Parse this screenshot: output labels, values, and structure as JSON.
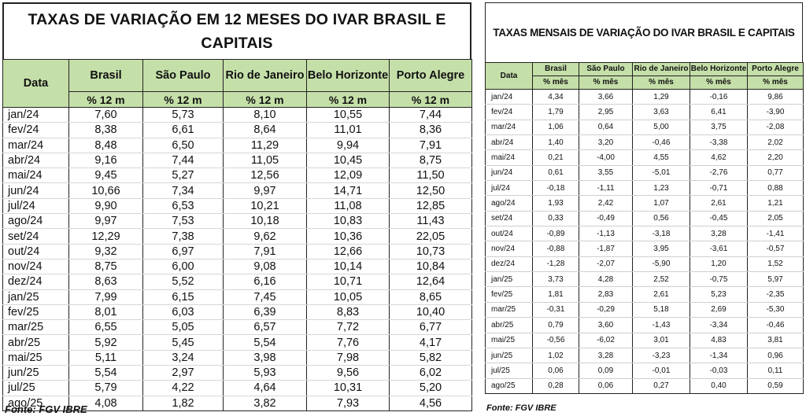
{
  "left": {
    "title": "TAXAS DE VARIAÇÃO EM 12 MESES DO IVAR BRASIL E CAPITAIS",
    "date_header": "Data",
    "columns": [
      "Brasil",
      "São Paulo",
      "Rio de Janeiro",
      "Belo Horizonte",
      "Porto Alegre"
    ],
    "unit": "% 12 m",
    "rows": [
      [
        "jan/24",
        "7,60",
        "5,73",
        "8,10",
        "10,55",
        "7,44"
      ],
      [
        "fev/24",
        "8,38",
        "6,61",
        "8,64",
        "11,01",
        "8,36"
      ],
      [
        "mar/24",
        "8,48",
        "6,50",
        "11,29",
        "9,94",
        "7,91"
      ],
      [
        "abr/24",
        "9,16",
        "7,44",
        "11,05",
        "10,45",
        "8,75"
      ],
      [
        "mai/24",
        "9,45",
        "5,27",
        "12,56",
        "12,09",
        "11,50"
      ],
      [
        "jun/24",
        "10,66",
        "7,34",
        "9,97",
        "14,71",
        "12,50"
      ],
      [
        "jul/24",
        "9,90",
        "6,53",
        "10,21",
        "11,08",
        "12,85"
      ],
      [
        "ago/24",
        "9,97",
        "7,53",
        "10,18",
        "10,83",
        "11,43"
      ],
      [
        "set/24",
        "12,29",
        "7,38",
        "9,62",
        "10,36",
        "22,05"
      ],
      [
        "out/24",
        "9,32",
        "6,97",
        "7,91",
        "12,66",
        "10,73"
      ],
      [
        "nov/24",
        "8,75",
        "6,00",
        "9,08",
        "10,14",
        "10,84"
      ],
      [
        "dez/24",
        "8,63",
        "5,52",
        "6,16",
        "10,71",
        "12,64"
      ],
      [
        "jan/25",
        "7,99",
        "6,15",
        "7,45",
        "10,05",
        "8,65"
      ],
      [
        "fev/25",
        "8,01",
        "6,03",
        "6,39",
        "8,83",
        "10,40"
      ],
      [
        "mar/25",
        "6,55",
        "5,05",
        "6,57",
        "7,72",
        "6,77"
      ],
      [
        "abr/25",
        "5,92",
        "5,45",
        "5,54",
        "7,76",
        "4,17"
      ],
      [
        "mai/25",
        "5,11",
        "3,24",
        "3,98",
        "7,98",
        "5,82"
      ],
      [
        "jun/25",
        "5,54",
        "2,97",
        "5,93",
        "9,56",
        "6,02"
      ],
      [
        "jul/25",
        "5,79",
        "4,22",
        "4,64",
        "10,31",
        "5,20"
      ],
      [
        "ago/25",
        "4,08",
        "1,82",
        "3,82",
        "7,93",
        "4,56"
      ]
    ],
    "source": "Fonte: FGV IBRE"
  },
  "right": {
    "title": "TAXAS MENSAIS DE VARIAÇÃO DO IVAR BRASIL E CAPITAIS",
    "date_header": "Data",
    "columns": [
      "Brasil",
      "São Paulo",
      "Rio de Janeiro",
      "Belo Horizonte",
      "Porto Alegre"
    ],
    "unit": "% mês",
    "rows": [
      [
        "jan/24",
        "4,34",
        "3,66",
        "1,29",
        "-0,16",
        "9,86"
      ],
      [
        "fev/24",
        "1,79",
        "2,95",
        "3,63",
        "6,41",
        "-3,90"
      ],
      [
        "mar/24",
        "1,06",
        "0,64",
        "5,00",
        "3,75",
        "-2,08"
      ],
      [
        "abr/24",
        "1,40",
        "3,20",
        "-0,46",
        "-3,38",
        "2,02"
      ],
      [
        "mai/24",
        "0,21",
        "-4,00",
        "4,55",
        "4,62",
        "2,20"
      ],
      [
        "jun/24",
        "0,61",
        "3,55",
        "-5,01",
        "-2,76",
        "0,77"
      ],
      [
        "jul/24",
        "-0,18",
        "-1,11",
        "1,23",
        "-0,71",
        "0,88"
      ],
      [
        "ago/24",
        "1,93",
        "2,42",
        "1,07",
        "2,61",
        "1,21"
      ],
      [
        "set/24",
        "0,33",
        "-0,49",
        "0,56",
        "-0,45",
        "2,05"
      ],
      [
        "out/24",
        "-0,89",
        "-1,13",
        "-3,18",
        "3,28",
        "-1,41"
      ],
      [
        "nov/24",
        "-0,88",
        "-1,87",
        "3,95",
        "-3,61",
        "-0,57"
      ],
      [
        "dez/24",
        "-1,28",
        "-2,07",
        "-5,90",
        "1,20",
        "1,52"
      ],
      [
        "jan/25",
        "3,73",
        "4,28",
        "2,52",
        "-0,75",
        "5,97"
      ],
      [
        "fev/25",
        "1,81",
        "2,83",
        "2,61",
        "5,23",
        "-2,35"
      ],
      [
        "mar/25",
        "-0,31",
        "-0,29",
        "5,18",
        "2,69",
        "-5,30"
      ],
      [
        "abr/25",
        "0,79",
        "3,60",
        "-1,43",
        "-3,34",
        "-0,46"
      ],
      [
        "mai/25",
        "-0,56",
        "-6,02",
        "3,01",
        "4,83",
        "3,81"
      ],
      [
        "jun/25",
        "1,02",
        "3,28",
        "-3,23",
        "-1,34",
        "0,96"
      ],
      [
        "jul/25",
        "0,06",
        "0,09",
        "-0,01",
        "-0,03",
        "0,11"
      ],
      [
        "ago/25",
        "0,28",
        "0,06",
        "0,27",
        "0,40",
        "0,59"
      ]
    ],
    "source": "Fonte: FGV IBRE"
  }
}
